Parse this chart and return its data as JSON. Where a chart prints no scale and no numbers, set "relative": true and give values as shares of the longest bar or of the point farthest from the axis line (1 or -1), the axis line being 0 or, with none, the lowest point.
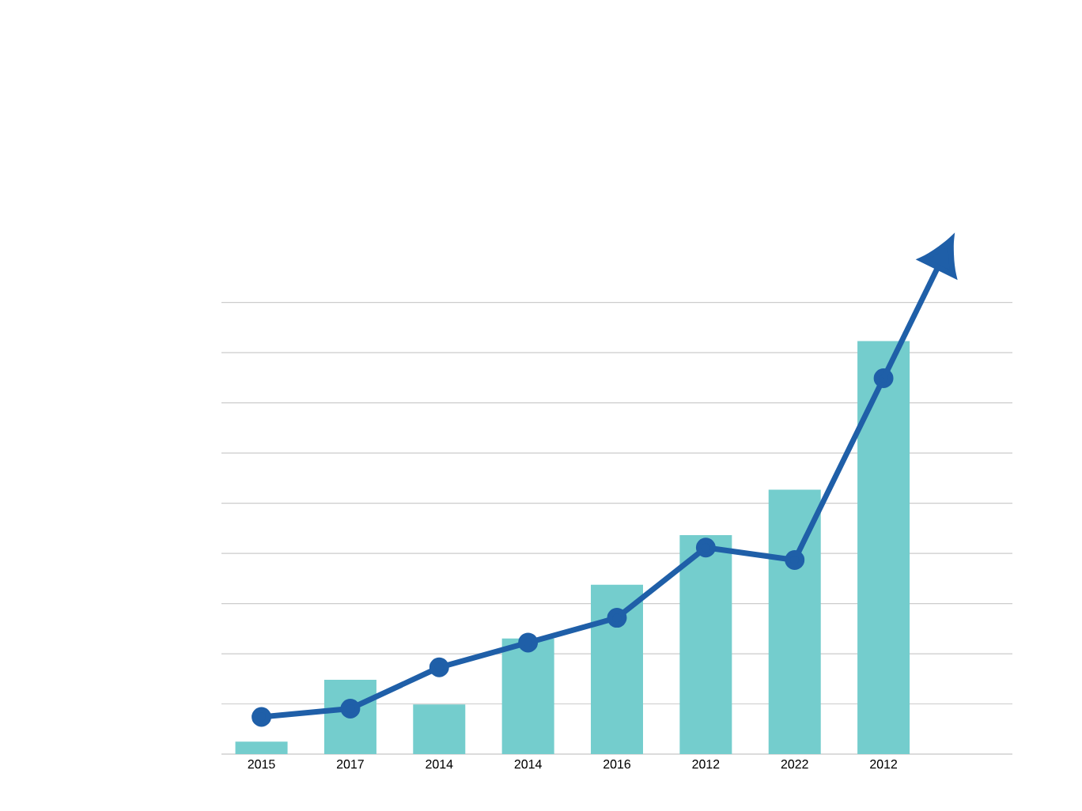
{
  "chart_data": {
    "type": "bar",
    "relative": true,
    "grid": "y",
    "marker": "circle",
    "line_style": "solid",
    "categories": [
      "2015",
      "2017",
      "2014",
      "2014",
      "2016",
      "2012",
      "2022",
      "2012"
    ],
    "series": [
      {
        "color": "#74cdcd",
        "values": [
          0.03,
          0.18,
          0.12,
          0.28,
          0.41,
          0.53,
          0.64,
          1
        ]
      },
      {
        "type": "line",
        "color": "#1f5fa8",
        "values": [
          0.09,
          0.11,
          0.21,
          0.27,
          0.33,
          0.5,
          0.47,
          0.91
        ]
      }
    ]
  }
}
